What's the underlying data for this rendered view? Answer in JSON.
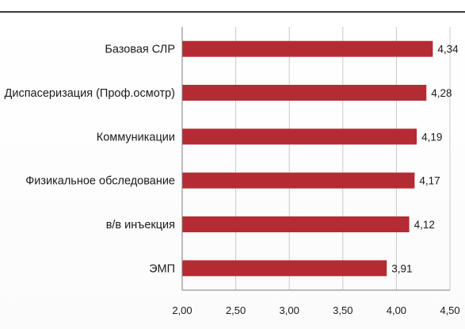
{
  "chart_data": {
    "type": "bar",
    "orientation": "horizontal",
    "categories": [
      "Базовая СЛР",
      "Диспасеризация (Проф.осмотр)",
      "Коммуникации",
      "Физикальное обследование",
      "в/в инъекция",
      "ЭМП"
    ],
    "values": [
      4.34,
      4.28,
      4.19,
      4.17,
      4.12,
      3.91
    ],
    "value_labels": [
      "4,34",
      "4,28",
      "4,19",
      "4,17",
      "4,12",
      "3,91"
    ],
    "xlim": [
      2.0,
      4.5
    ],
    "xticks": [
      2.0,
      2.5,
      3.0,
      3.5,
      4.0,
      4.5
    ],
    "xtick_labels": [
      "2,00",
      "2,50",
      "3,00",
      "3,50",
      "4,00",
      "4,50"
    ],
    "grid": "vertical",
    "bar_color": "#b52b33"
  }
}
